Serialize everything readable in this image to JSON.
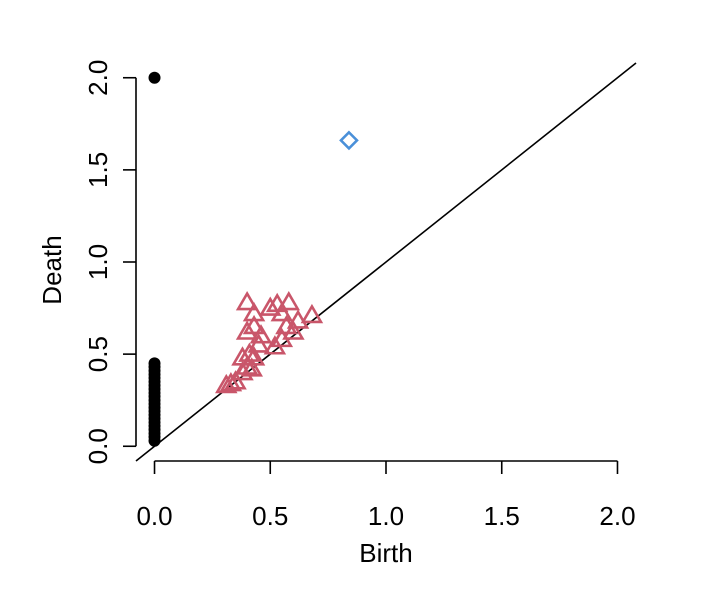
{
  "chart_data": {
    "type": "scatter",
    "title": "",
    "xlabel": "Birth",
    "ylabel": "Death",
    "xlim": [
      -0.08,
      2.08
    ],
    "ylim": [
      -0.08,
      2.08
    ],
    "x_ticks": [
      "0.0",
      "0.5",
      "1.0",
      "1.5",
      "2.0"
    ],
    "y_ticks": [
      "0.0",
      "0.5",
      "1.0",
      "1.5",
      "2.0"
    ],
    "grid": false,
    "legend": "none",
    "diagonal": true,
    "series": [
      {
        "marker": "filled-circle",
        "color": "#000000",
        "points": [
          [
            0,
            2.0
          ],
          [
            0,
            0.45
          ],
          [
            0,
            0.43
          ],
          [
            0,
            0.41
          ],
          [
            0,
            0.39
          ],
          [
            0,
            0.37
          ],
          [
            0,
            0.35
          ],
          [
            0,
            0.33
          ],
          [
            0,
            0.31
          ],
          [
            0,
            0.29
          ],
          [
            0,
            0.27
          ],
          [
            0,
            0.25
          ],
          [
            0,
            0.23
          ],
          [
            0,
            0.21
          ],
          [
            0,
            0.19
          ],
          [
            0,
            0.17
          ],
          [
            0,
            0.15
          ],
          [
            0,
            0.13
          ],
          [
            0,
            0.11
          ],
          [
            0,
            0.09
          ],
          [
            0,
            0.07
          ],
          [
            0,
            0.05
          ],
          [
            0,
            0.03
          ]
        ]
      },
      {
        "marker": "open-triangle",
        "color": "#c9566a",
        "points": [
          [
            0.31,
            0.33
          ],
          [
            0.33,
            0.34
          ],
          [
            0.35,
            0.35
          ],
          [
            0.38,
            0.4
          ],
          [
            0.4,
            0.43
          ],
          [
            0.42,
            0.42
          ],
          [
            0.38,
            0.48
          ],
          [
            0.41,
            0.5
          ],
          [
            0.43,
            0.48
          ],
          [
            0.45,
            0.55
          ],
          [
            0.4,
            0.62
          ],
          [
            0.43,
            0.65
          ],
          [
            0.46,
            0.6
          ],
          [
            0.4,
            0.78
          ],
          [
            0.43,
            0.72
          ],
          [
            0.5,
            0.75
          ],
          [
            0.53,
            0.77
          ],
          [
            0.55,
            0.72
          ],
          [
            0.58,
            0.78
          ],
          [
            0.57,
            0.65
          ],
          [
            0.6,
            0.62
          ],
          [
            0.62,
            0.68
          ],
          [
            0.55,
            0.58
          ],
          [
            0.52,
            0.54
          ],
          [
            0.68,
            0.71
          ]
        ]
      },
      {
        "marker": "open-diamond",
        "color": "#4a90d9",
        "points": [
          [
            0.84,
            1.66
          ]
        ]
      }
    ]
  }
}
